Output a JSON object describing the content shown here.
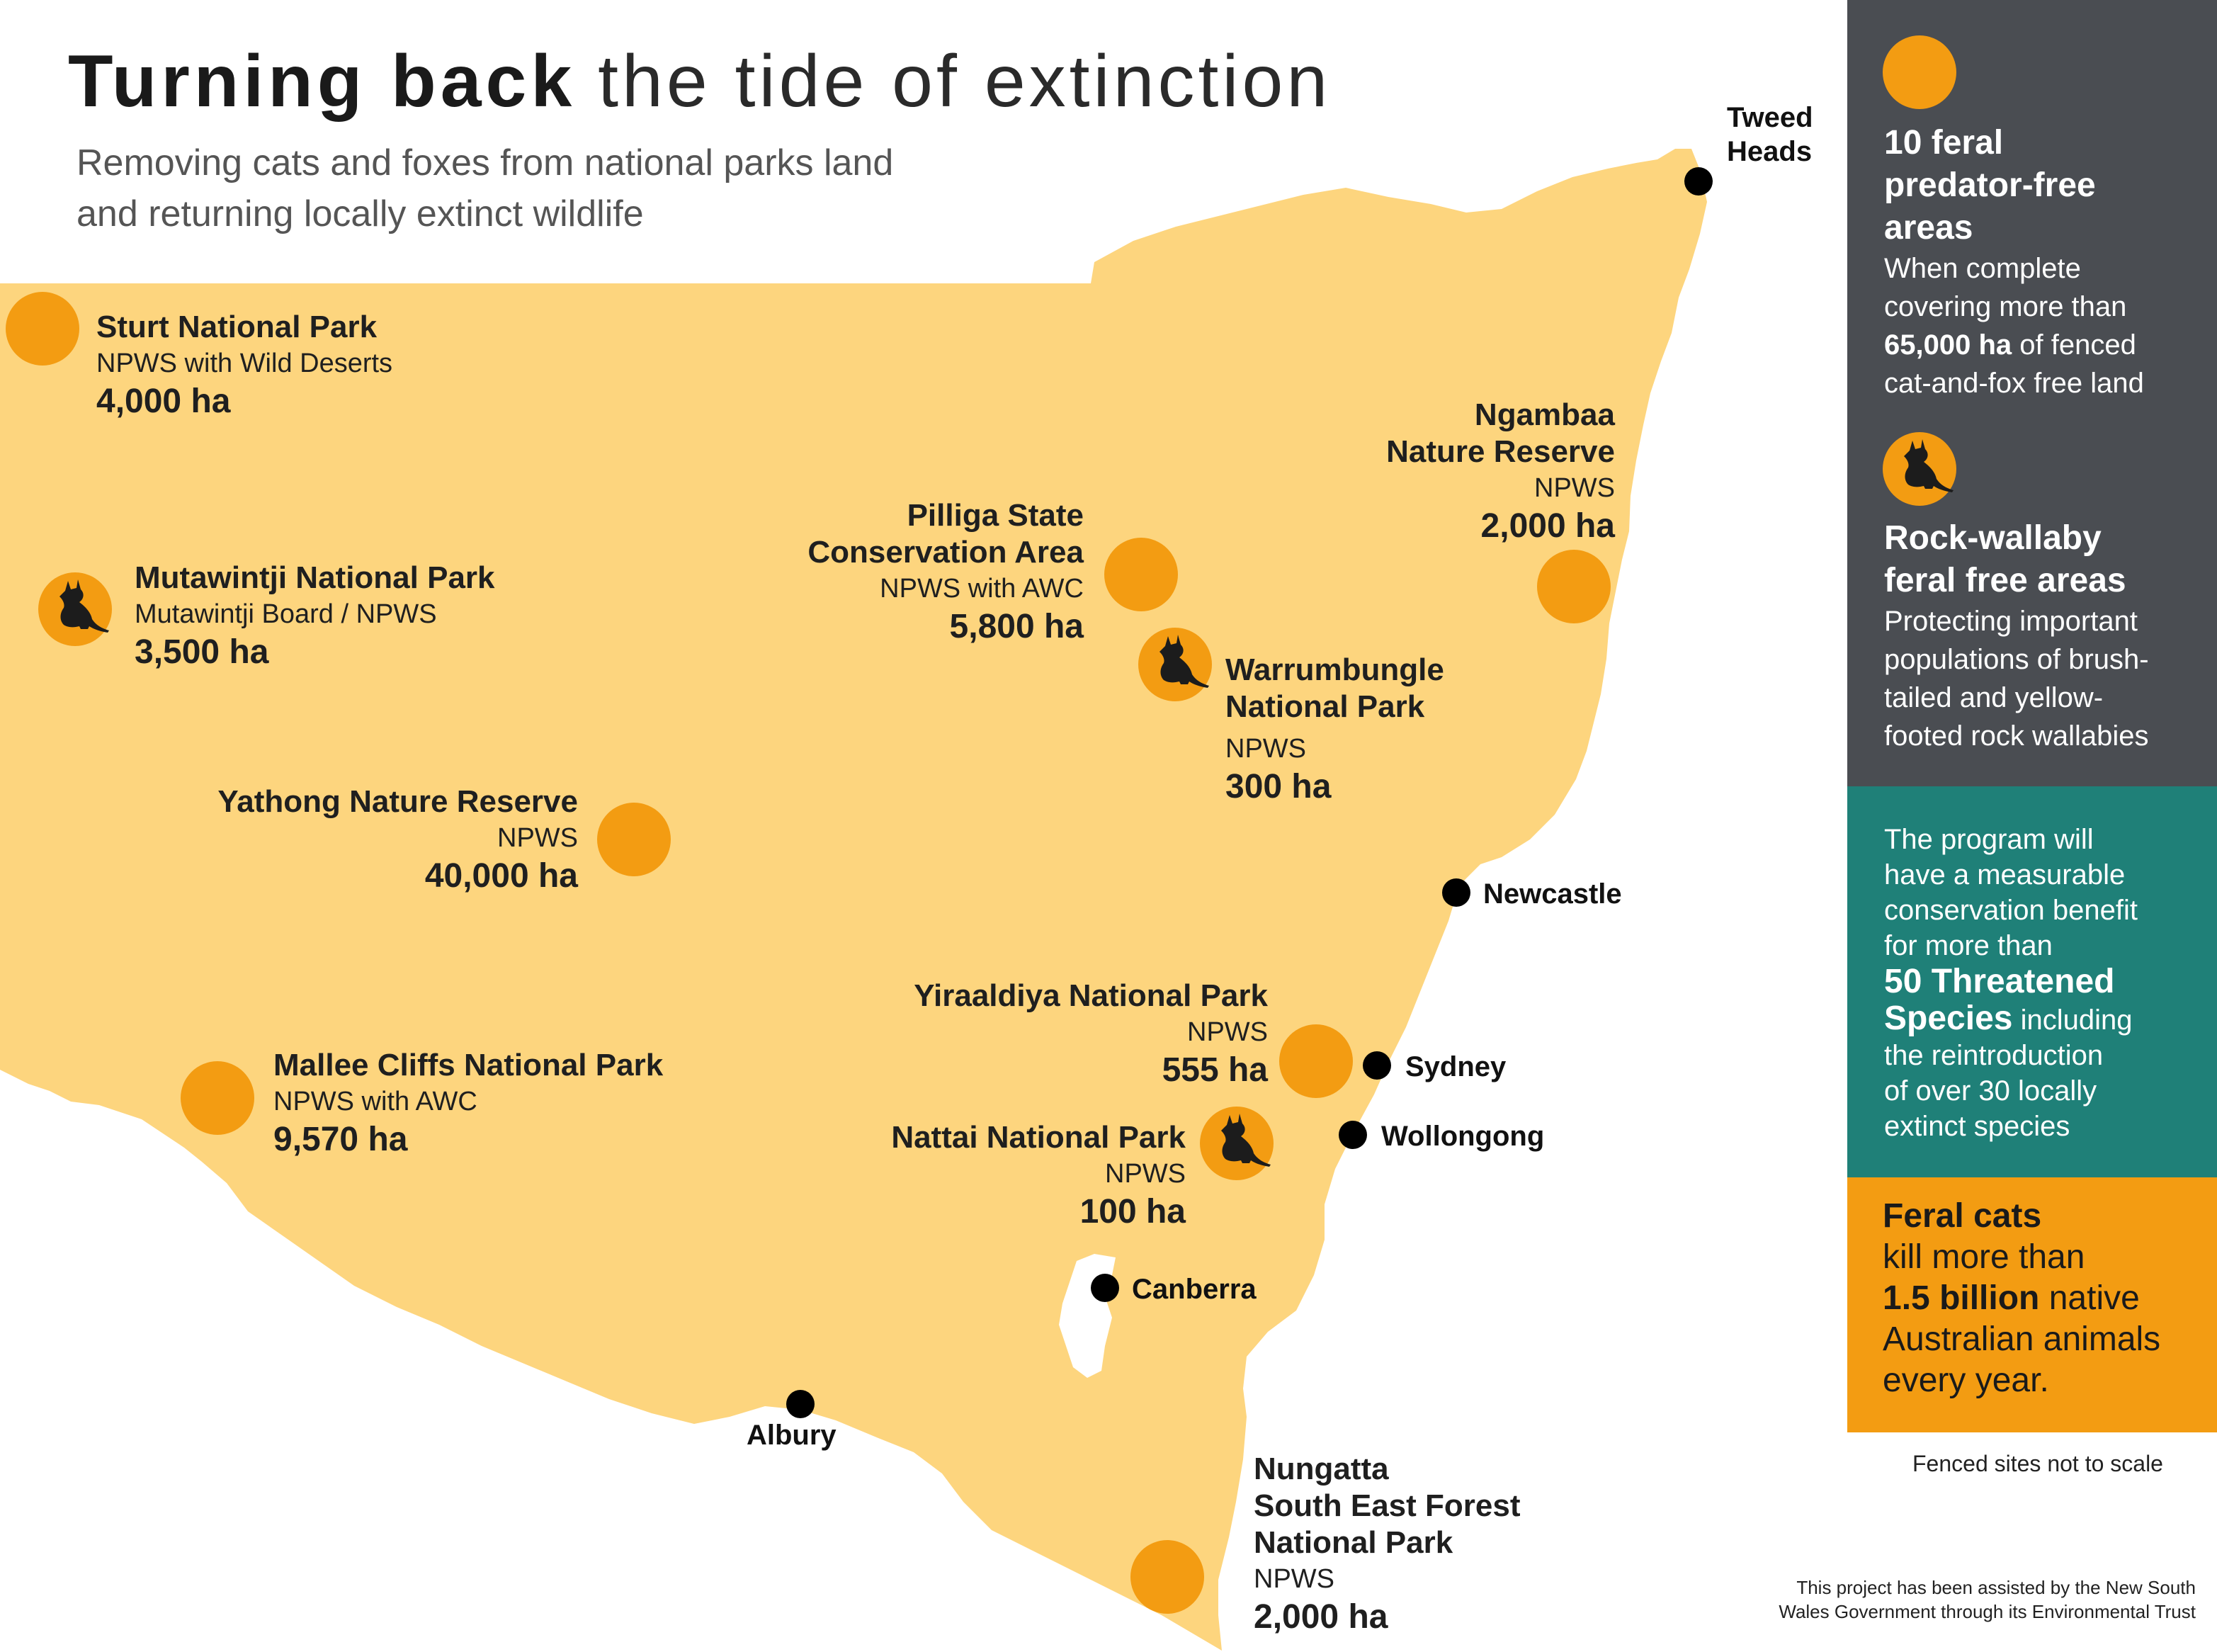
{
  "header": {
    "title_bold": "Turning back",
    "title_rest": "the tide of extinction",
    "subtitle_line1": "Removing cats and foxes from national parks land",
    "subtitle_line2": "and returning locally extinct wildlife"
  },
  "colors": {
    "state_fill": "#fdd57e",
    "site_marker": "#f39c12",
    "city_dot": "#000000",
    "panel_gray": "#4a4d52",
    "panel_teal": "#1f8078",
    "panel_orange": "#f39c12"
  },
  "sites": {
    "sturt": {
      "name": "Sturt National Park",
      "org": "NPWS with Wild Deserts",
      "area": "4,000 ha",
      "marker": "circle"
    },
    "mutawintji": {
      "name": "Mutawintji National Park",
      "org": "Mutawintji Board / NPWS",
      "area": "3,500 ha",
      "marker": "wallaby-icon"
    },
    "yathong": {
      "name": "Yathong Nature Reserve",
      "org": "NPWS",
      "area": "40,000 ha",
      "marker": "circle"
    },
    "mallee": {
      "name": "Mallee Cliffs National Park",
      "org": "NPWS with AWC",
      "area": "9,570 ha",
      "marker": "circle"
    },
    "pilliga": {
      "name_line1": "Pilliga State",
      "name_line2": "Conservation Area",
      "org": "NPWS with AWC",
      "area": "5,800 ha",
      "marker": "circle"
    },
    "warrumbungle": {
      "name_line1": "Warrumbungle",
      "name_line2": "National Park",
      "org": "NPWS",
      "area": "300 ha",
      "marker": "wallaby-icon"
    },
    "ngambaa": {
      "name_line1": "Ngambaa",
      "name_line2": "Nature Reserve",
      "org": "NPWS",
      "area": "2,000 ha",
      "marker": "circle"
    },
    "yiraaldiya": {
      "name": "Yiraaldiya National Park",
      "org": "NPWS",
      "area": "555 ha",
      "marker": "circle"
    },
    "nattai": {
      "name": "Nattai National Park",
      "org": "NPWS",
      "area": "100 ha",
      "marker": "wallaby-icon"
    },
    "nungatta": {
      "name_line1": "Nungatta",
      "name_line2": "South East Forest",
      "name_line3": "National Park",
      "org": "NPWS",
      "area": "2,000 ha",
      "marker": "circle"
    }
  },
  "cities": {
    "tweed_line1": "Tweed",
    "tweed_line2": "Heads",
    "newcastle": "Newcastle",
    "sydney": "Sydney",
    "wollongong": "Wollongong",
    "canberra": "Canberra",
    "albury": "Albury"
  },
  "panel": {
    "predator_free": {
      "heading_line1": "10 feral",
      "heading_line2": "predator-free",
      "heading_line3": "areas",
      "body_line1": "When complete",
      "body_line2": "covering more than",
      "body_bold": "65,000 ha",
      "body_line3_rest": " of fenced",
      "body_line4": "cat-and-fox free land"
    },
    "rock_wallaby": {
      "heading_line1": "Rock-wallaby",
      "heading_line2": "feral free areas",
      "body_line1": "Protecting important",
      "body_line2": "populations of brush-",
      "body_line3": "tailed and yellow-",
      "body_line4": "footed rock wallabies"
    },
    "program": {
      "line1": "The program will",
      "line2": "have a measurable",
      "line3": "conservation benefit",
      "line4": "for more than",
      "big1": "50 Threatened",
      "big2": "Species",
      "line5_rest": " including",
      "line6": "the reintroduction",
      "line7": "of over 30 locally",
      "line8": "extinct species"
    },
    "feral_cats": {
      "bold1": "Feral cats",
      "line1": "kill more than",
      "bold2": "1.5 billion",
      "line2_rest": " native",
      "line3": "Australian animals",
      "line4": "every year."
    }
  },
  "notes": {
    "scale": "Fenced sites not to scale",
    "credit_line1": "This project has been assisted by the New South",
    "credit_line2": "Wales Government through its Environmental Trust"
  }
}
